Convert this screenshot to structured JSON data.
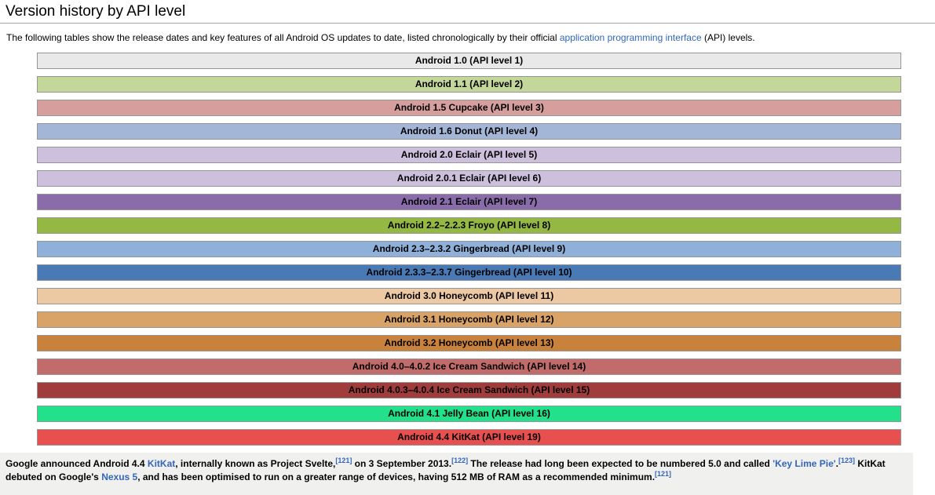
{
  "page": {
    "title": "Version history by API level"
  },
  "intro": {
    "segments": [
      {
        "t": "text",
        "v": "The following tables show the release dates and key features of all Android OS updates to date, listed chronologically by their official "
      },
      {
        "t": "link",
        "v": "application programming interface"
      },
      {
        "t": "text",
        "v": " (API) levels."
      }
    ]
  },
  "versions_table": {
    "rows": [
      {
        "api": "1",
        "label": "Android 1.0 (API level 1)",
        "bg": "#e9e9e9"
      },
      {
        "api": "2",
        "label": "Android 1.1 (API level 2)",
        "bg": "#c4d79b"
      },
      {
        "api": "3",
        "label": "Android 1.5 Cupcake (API level 3)",
        "bg": "#d79e9e"
      },
      {
        "api": "4",
        "label": "Android 1.6 Donut (API level 4)",
        "bg": "#a3b6d7"
      },
      {
        "api": "5",
        "label": "Android 2.0 Eclair (API level 5)",
        "bg": "#cdc0dd"
      },
      {
        "api": "6",
        "label": "Android 2.0.1 Eclair (API level 6)",
        "bg": "#cdc0dd"
      },
      {
        "api": "7",
        "label": "Android 2.1 Eclair (API level 7)",
        "bg": "#8a6cab"
      },
      {
        "api": "8",
        "label": "Android 2.2–2.2.3 Froyo (API level 8)",
        "bg": "#95b843"
      },
      {
        "api": "9",
        "label": "Android 2.3–2.3.2 Gingerbread (API level 9)",
        "bg": "#8fb0d9"
      },
      {
        "api": "10",
        "label": "Android 2.3.3–2.3.7 Gingerbread (API level 10)",
        "bg": "#4a7ab5"
      },
      {
        "api": "11",
        "label": "Android 3.0 Honeycomb (API level 11)",
        "bg": "#ecc9a3"
      },
      {
        "api": "12",
        "label": "Android 3.1 Honeycomb (API level 12)",
        "bg": "#d9a367"
      },
      {
        "api": "13",
        "label": "Android 3.2 Honeycomb (API level 13)",
        "bg": "#c9823c"
      },
      {
        "api": "14",
        "label": "Android 4.0–4.0.2 Ice Cream Sandwich (API level 14)",
        "bg": "#c26b6b"
      },
      {
        "api": "15",
        "label": "Android 4.0.3–4.0.4 Ice Cream Sandwich (API level 15)",
        "bg": "#a03c3c"
      },
      {
        "api": "16",
        "label": "Android 4.1 Jelly Bean (API level 16)",
        "bg": "#23e18b"
      },
      {
        "api": "19",
        "label": "Android 4.4 KitKat (API level 19)",
        "bg": "#e85050"
      }
    ]
  },
  "footer": {
    "bg": "#f0f0ee",
    "segments": [
      {
        "t": "text",
        "v": "Google announced Android 4.4 "
      },
      {
        "t": "link",
        "v": "KitKat"
      },
      {
        "t": "text",
        "v": ", internally known as Project Svelte,"
      },
      {
        "t": "sup",
        "v": "[121]"
      },
      {
        "t": "text",
        "v": " on 3 September 2013."
      },
      {
        "t": "sup",
        "v": "[122]"
      },
      {
        "t": "text",
        "v": " The release had long been expected to be numbered 5.0 and called "
      },
      {
        "t": "link",
        "v": "'Key Lime Pie'"
      },
      {
        "t": "text",
        "v": "."
      },
      {
        "t": "sup",
        "v": "[123]"
      },
      {
        "t": "text",
        "v": " KitKat debuted on Google's "
      },
      {
        "t": "link",
        "v": "Nexus 5"
      },
      {
        "t": "text",
        "v": ", and has been optimised to run on a greater range of devices, having 512 MB of RAM as a recommended minimum."
      },
      {
        "t": "sup",
        "v": "[121]"
      }
    ]
  }
}
